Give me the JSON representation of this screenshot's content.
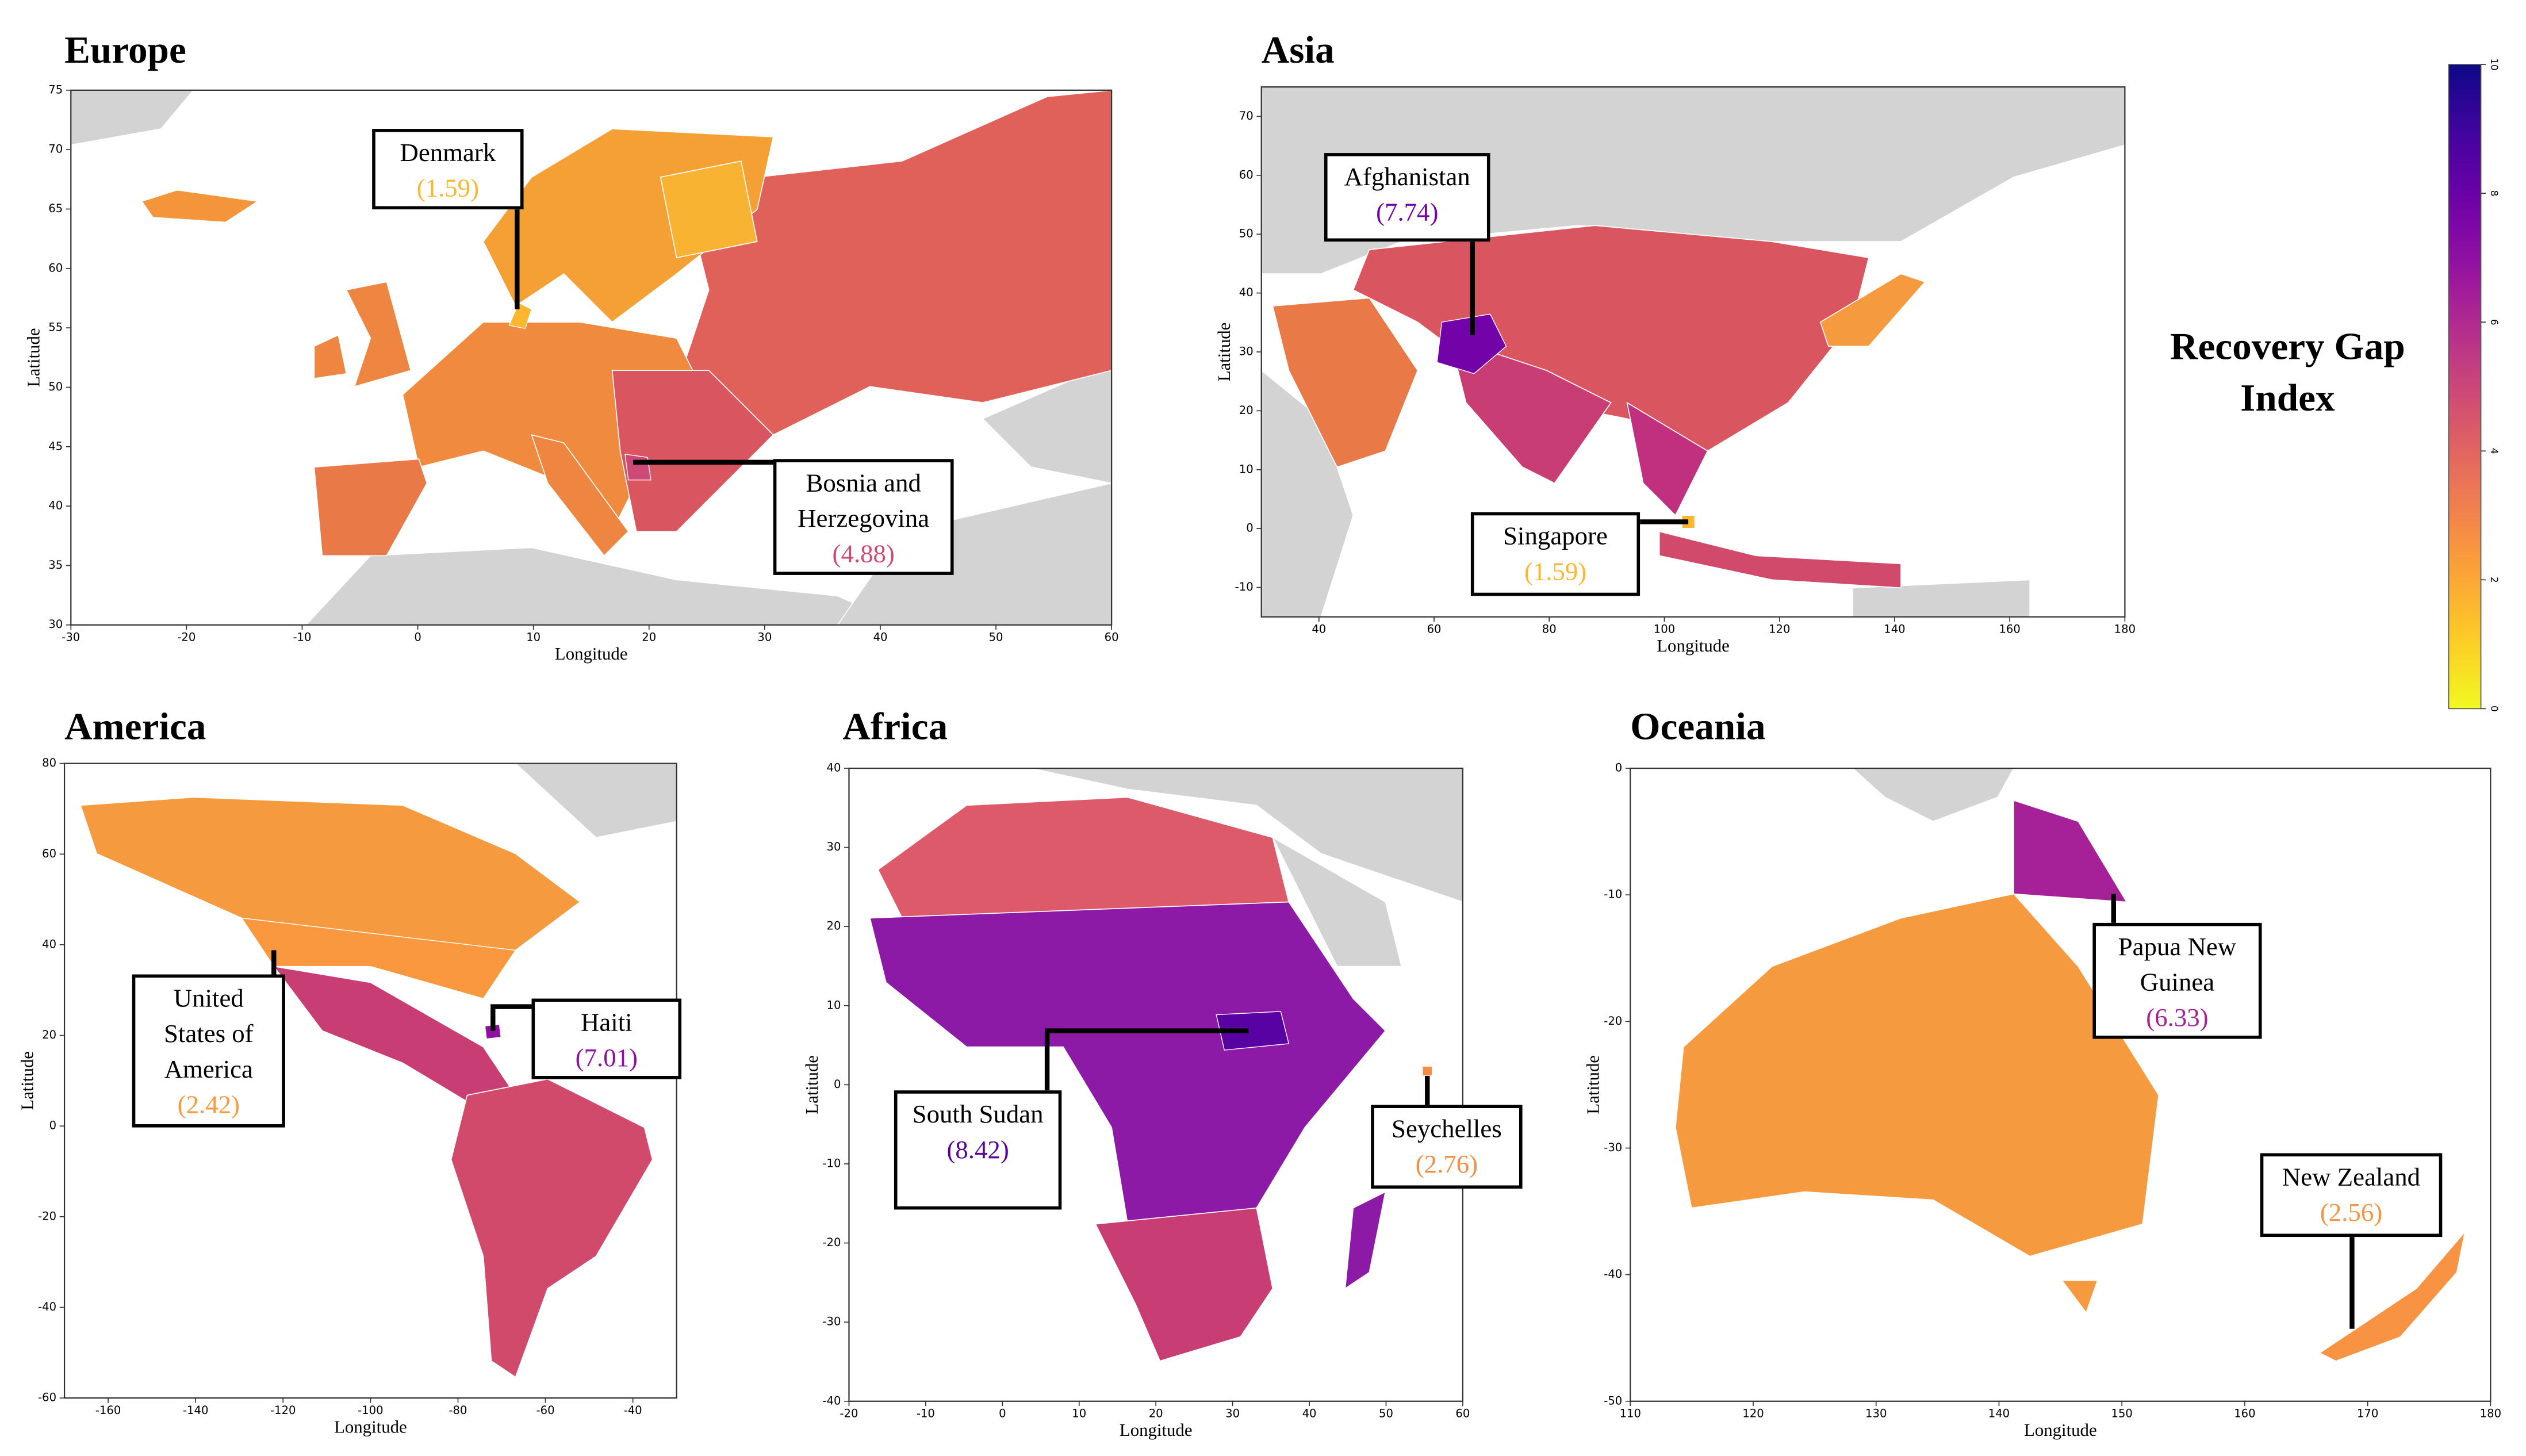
{
  "panels": [
    {
      "title": "Europe",
      "xlabel": "Longitude",
      "ylabel": "Latitude",
      "xlim": [
        -30,
        60
      ],
      "ylim": [
        30,
        75
      ],
      "xticks": [
        -30,
        -20,
        -10,
        0,
        10,
        20,
        30,
        40,
        50,
        60
      ],
      "yticks": [
        30,
        35,
        40,
        45,
        50,
        55,
        60,
        65,
        70,
        75
      ],
      "callouts": [
        {
          "country": "Denmark",
          "value": 1.59,
          "value_label": "(1.59)"
        },
        {
          "country": "Bosnia and Herzegovina",
          "value": 4.88,
          "value_label": "(4.88)"
        }
      ]
    },
    {
      "title": "Asia",
      "xlabel": "Longitude",
      "ylabel": "Latitude",
      "xlim": [
        30,
        180
      ],
      "ylim": [
        -15,
        75
      ],
      "xticks": [
        40,
        60,
        80,
        100,
        120,
        140,
        160,
        180
      ],
      "yticks": [
        -10,
        0,
        10,
        20,
        30,
        40,
        50,
        60,
        70
      ],
      "callouts": [
        {
          "country": "Afghanistan",
          "value": 7.74,
          "value_label": "(7.74)"
        },
        {
          "country": "Singapore",
          "value": 1.59,
          "value_label": "(1.59)"
        }
      ]
    },
    {
      "title": "America",
      "xlabel": "Longitude",
      "ylabel": "Latitude",
      "xlim": [
        -170,
        -30
      ],
      "ylim": [
        -60,
        80
      ],
      "xticks": [
        -160,
        -140,
        -120,
        -100,
        -80,
        -60,
        -40
      ],
      "yticks": [
        -60,
        -40,
        -20,
        0,
        20,
        40,
        60,
        80
      ],
      "callouts": [
        {
          "country": "United States of America",
          "value": 2.42,
          "value_label": "(2.42)"
        },
        {
          "country": "Haiti",
          "value": 7.01,
          "value_label": "(7.01)"
        }
      ]
    },
    {
      "title": "Africa",
      "xlabel": "Longitude",
      "ylabel": "Latitude",
      "xlim": [
        -20,
        60
      ],
      "ylim": [
        -40,
        40
      ],
      "xticks": [
        -20,
        -10,
        0,
        10,
        20,
        30,
        40,
        50,
        60
      ],
      "yticks": [
        -40,
        -30,
        -20,
        -10,
        0,
        10,
        20,
        30,
        40
      ],
      "callouts": [
        {
          "country": "South Sudan",
          "value": 8.42,
          "value_label": "(8.42)"
        },
        {
          "country": "Seychelles",
          "value": 2.76,
          "value_label": "(2.76)"
        }
      ]
    },
    {
      "title": "Oceania",
      "xlabel": "Longitude",
      "ylabel": "Latitude",
      "xlim": [
        110,
        180
      ],
      "ylim": [
        -50,
        0
      ],
      "xticks": [
        110,
        120,
        130,
        140,
        150,
        160,
        170,
        180
      ],
      "yticks": [
        -50,
        -40,
        -30,
        -20,
        -10,
        0
      ],
      "callouts": [
        {
          "country": "Papua New Guinea",
          "value": 6.33,
          "value_label": "(6.33)"
        },
        {
          "country": "New Zealand",
          "value": 2.56,
          "value_label": "(2.56)"
        }
      ]
    }
  ],
  "colorbar": {
    "title": "Recovery Gap Index",
    "cmap": "plasma_r",
    "lim": [
      0,
      10
    ],
    "ticks": [
      0,
      2,
      4,
      6,
      8,
      10
    ]
  }
}
